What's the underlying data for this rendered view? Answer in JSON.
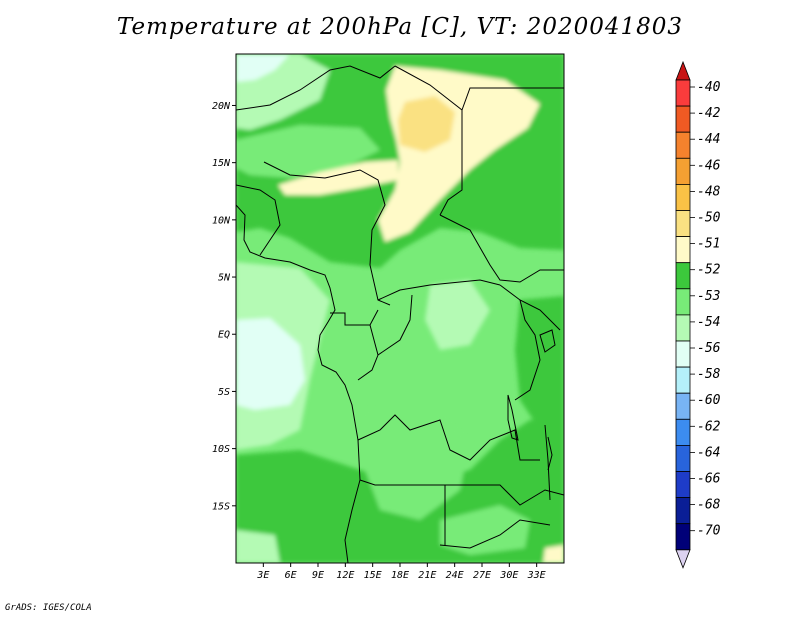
{
  "title": "Temperature at 200hPa [C], VT: 2020041803",
  "footer": "GrADS: IGES/COLA",
  "map": {
    "lon_range": [
      0,
      36
    ],
    "lat_range": [
      -20,
      24.5
    ],
    "x_ticks": [
      "3E",
      "6E",
      "9E",
      "12E",
      "15E",
      "18E",
      "21E",
      "24E",
      "27E",
      "30E",
      "33E"
    ],
    "y_ticks": [
      "20N",
      "15N",
      "10N",
      "5N",
      "EQ",
      "5S",
      "10S",
      "15S"
    ]
  },
  "colorbar": {
    "levels": [
      {
        "label": "-40",
        "color": "#fa3c3c"
      },
      {
        "label": "-42",
        "color": "#f05a23"
      },
      {
        "label": "-44",
        "color": "#f5822d"
      },
      {
        "label": "-46",
        "color": "#f5a032"
      },
      {
        "label": "-48",
        "color": "#fac246"
      },
      {
        "label": "-50",
        "color": "#fae182"
      },
      {
        "label": "-51",
        "color": "#fffac8"
      },
      {
        "label": "-52",
        "color": "#3cc83c"
      },
      {
        "label": "-53",
        "color": "#78eb78"
      },
      {
        "label": "-54",
        "color": "#b4fab4"
      },
      {
        "label": "-56",
        "color": "#e1fff5"
      },
      {
        "label": "-58",
        "color": "#b4f0fa"
      },
      {
        "label": "-60",
        "color": "#78b4f5"
      },
      {
        "label": "-62",
        "color": "#3c8cf0"
      },
      {
        "label": "-64",
        "color": "#2864dc"
      },
      {
        "label": "-66",
        "color": "#1e3cc8"
      },
      {
        "label": "-68",
        "color": "#0a1e96"
      },
      {
        "label": "-70",
        "color": "#000078"
      }
    ],
    "top_arrow_color": "#c81414",
    "bottom_arrow_color": "#dcd2f0"
  }
}
